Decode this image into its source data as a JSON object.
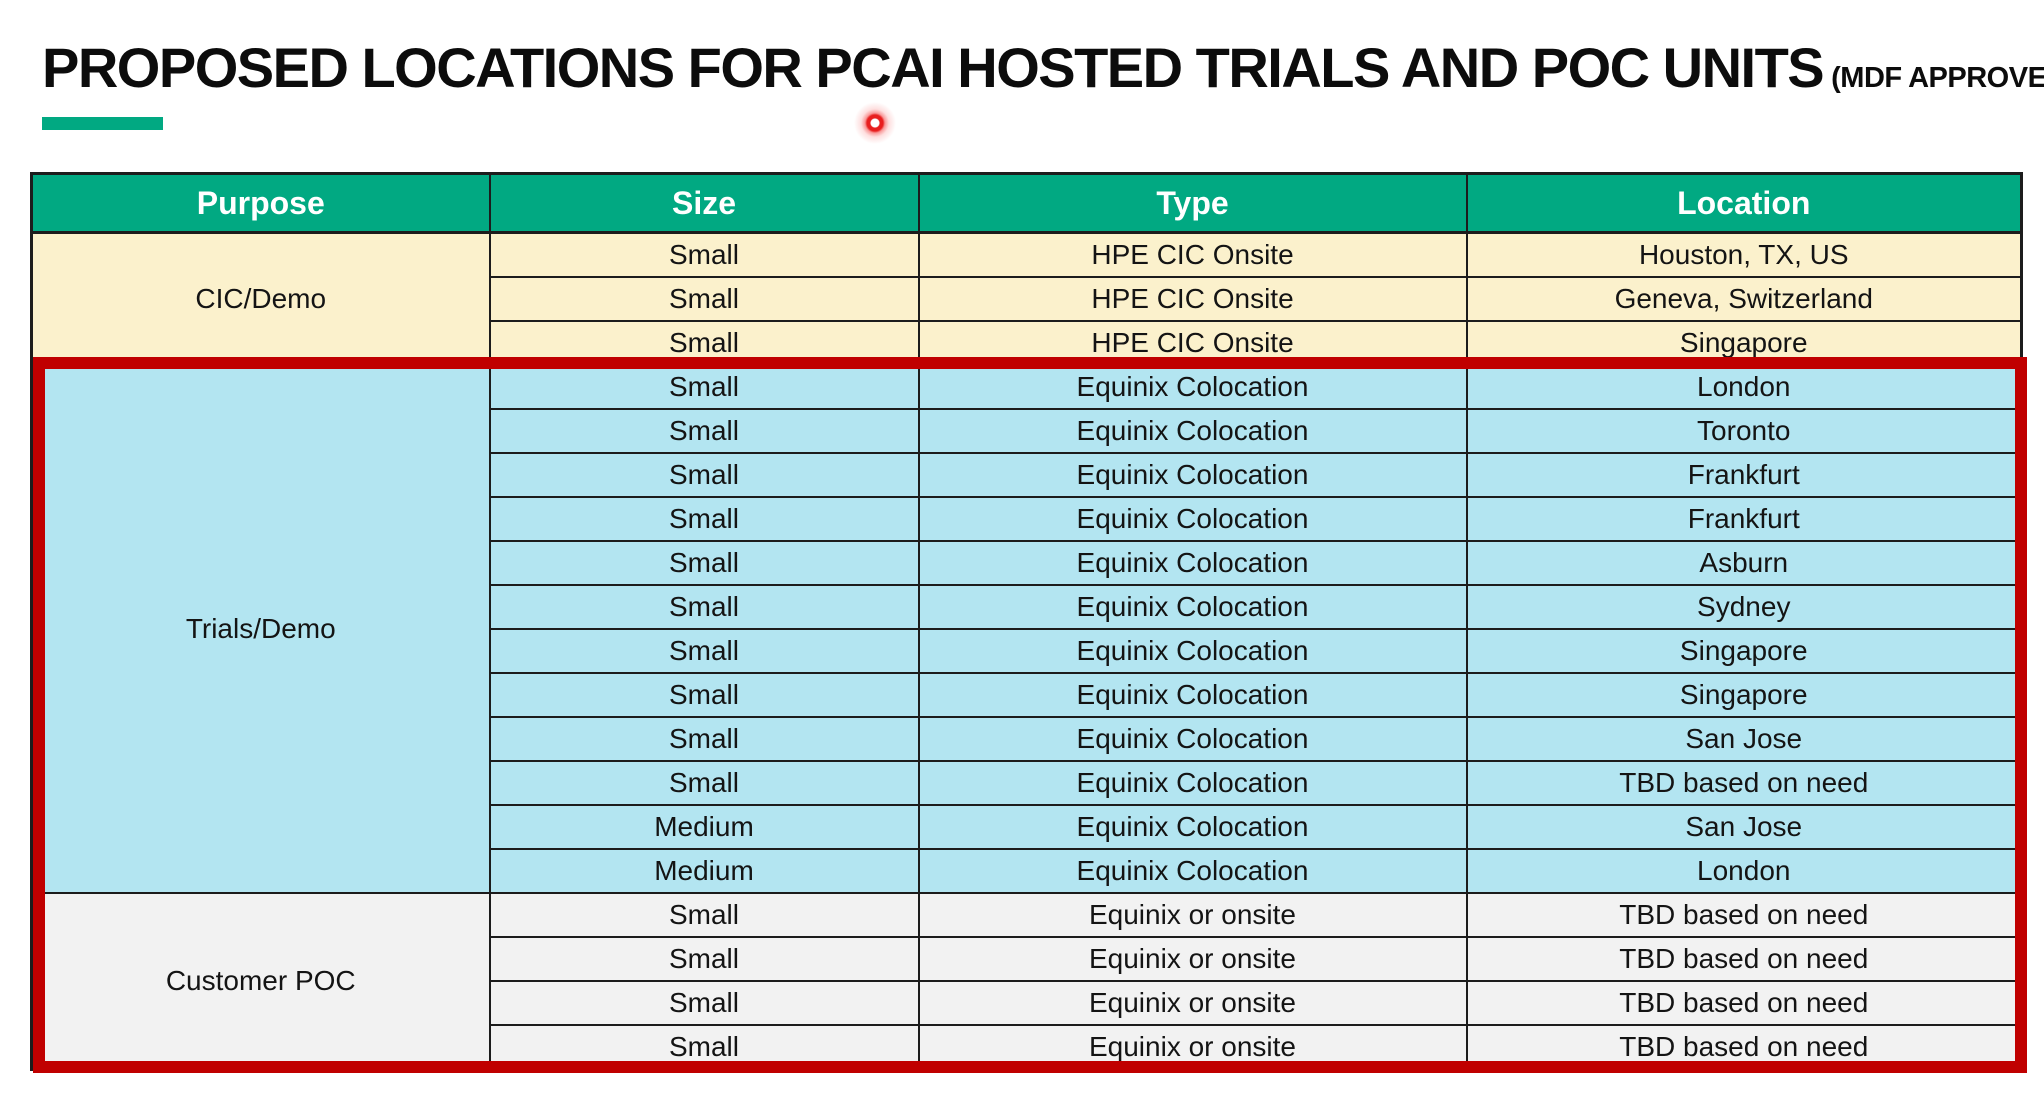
{
  "slide": {
    "title": "PROPOSED LOCATIONS FOR PCAI HOSTED TRIALS AND POC UNITS",
    "title_suffix": "(MDF APPROVED)"
  },
  "table": {
    "columns": [
      "Purpose",
      "Size",
      "Type",
      "Location"
    ],
    "sections": [
      {
        "purpose": "CIC/Demo",
        "style": "cic",
        "rows": [
          [
            "Small",
            "HPE CIC Onsite",
            "Houston, TX, US"
          ],
          [
            "Small",
            "HPE CIC Onsite",
            "Geneva, Switzerland"
          ],
          [
            "Small",
            "HPE CIC Onsite",
            "Singapore"
          ]
        ]
      },
      {
        "purpose": "Trials/Demo",
        "style": "trials",
        "rows": [
          [
            "Small",
            "Equinix Colocation",
            "London"
          ],
          [
            "Small",
            "Equinix Colocation",
            "Toronto"
          ],
          [
            "Small",
            "Equinix Colocation",
            "Frankfurt"
          ],
          [
            "Small",
            "Equinix Colocation",
            "Frankfurt"
          ],
          [
            "Small",
            "Equinix Colocation",
            "Asburn"
          ],
          [
            "Small",
            "Equinix Colocation",
            "Sydney"
          ],
          [
            "Small",
            "Equinix Colocation",
            "Singapore"
          ],
          [
            "Small",
            "Equinix Colocation",
            "Singapore"
          ],
          [
            "Small",
            "Equinix Colocation",
            "San Jose"
          ],
          [
            "Small",
            "Equinix Colocation",
            "TBD based on need"
          ],
          [
            "Medium",
            "Equinix Colocation",
            "San Jose"
          ],
          [
            "Medium",
            "Equinix Colocation",
            "London"
          ]
        ]
      },
      {
        "purpose": "Customer POC",
        "style": "poc",
        "rows": [
          [
            "Small",
            "Equinix or onsite",
            "TBD based on need"
          ],
          [
            "Small",
            "Equinix or onsite",
            "TBD based on need"
          ],
          [
            "Small",
            "Equinix or onsite",
            "TBD based on need"
          ],
          [
            "Small",
            "Equinix or onsite",
            "TBD based on need"
          ]
        ]
      }
    ]
  },
  "colors": {
    "header_bg": "#01A982",
    "title_underline": "#01A982",
    "cic_row_bg": "#FBF1CC",
    "trials_row_bg": "#B3E5F1",
    "poc_row_bg": "#F2F2F2",
    "highlight_border": "#C00000",
    "grid_line": "#1C1C1C"
  },
  "annotations": {
    "laser_dot": "red-laser-pointer-dot"
  }
}
